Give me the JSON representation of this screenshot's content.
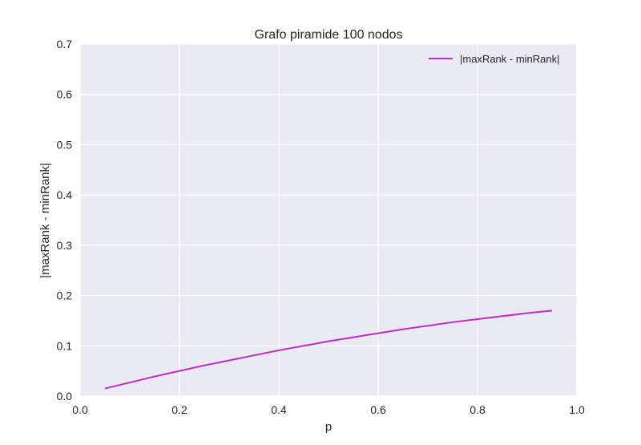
{
  "chart_data": {
    "type": "line",
    "title": "Grafo piramide 100 nodos",
    "xlabel": "p",
    "ylabel": "|maxRank - minRank|",
    "xlim": [
      0.0,
      1.0
    ],
    "ylim": [
      0.0,
      0.7
    ],
    "xticks": [
      "0.0",
      "0.2",
      "0.4",
      "0.6",
      "0.8",
      "1.0"
    ],
    "yticks": [
      "0.0",
      "0.1",
      "0.2",
      "0.3",
      "0.4",
      "0.5",
      "0.6",
      "0.7"
    ],
    "grid": true,
    "legend_position": "top-right",
    "colors": {
      "plot_background": "#EAEAF2",
      "grid": "#FFFFFF",
      "series": "#C02BC8"
    },
    "series": [
      {
        "name": "|maxRank - minRank|",
        "x": [
          0.05,
          0.1,
          0.15,
          0.2,
          0.25,
          0.3,
          0.35,
          0.4,
          0.45,
          0.5,
          0.55,
          0.6,
          0.65,
          0.7,
          0.75,
          0.8,
          0.85,
          0.9,
          0.95
        ],
        "y": [
          0.015,
          0.027,
          0.039,
          0.05,
          0.061,
          0.071,
          0.081,
          0.091,
          0.1,
          0.109,
          0.117,
          0.125,
          0.133,
          0.14,
          0.147,
          0.153,
          0.159,
          0.165,
          0.17
        ]
      }
    ]
  }
}
